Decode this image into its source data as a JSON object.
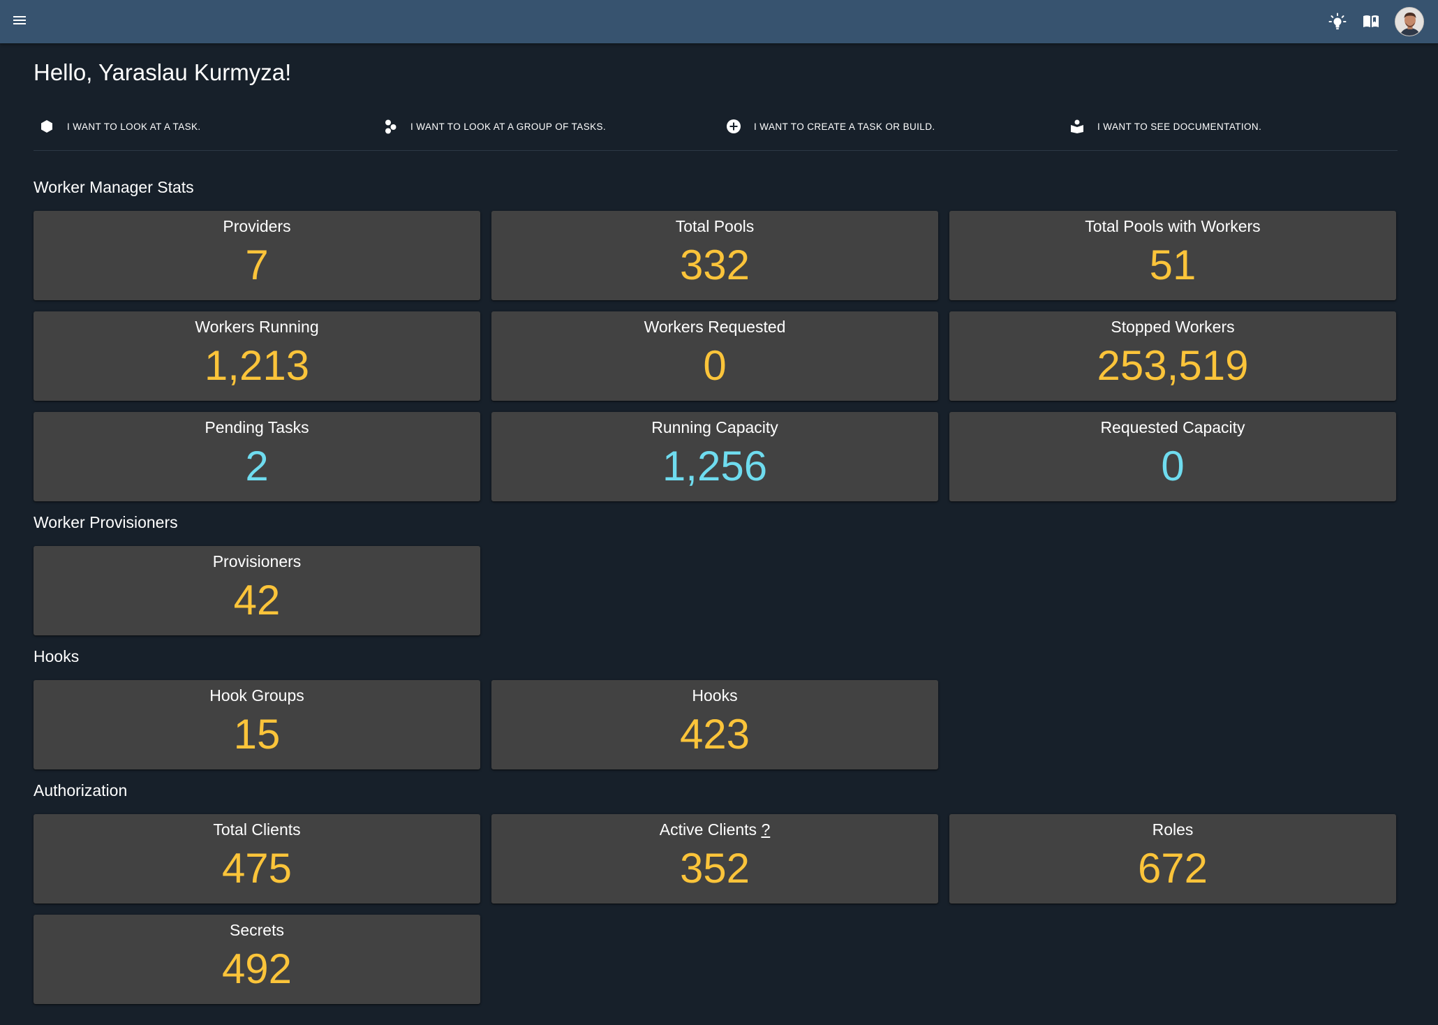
{
  "appbar": {
    "menu_icon": "hamburger-menu-icon",
    "theme_icon": "lightbulb-icon",
    "docs_icon": "open-book-icon",
    "avatar_icon": "user-avatar",
    "color": "#37536f"
  },
  "greeting": "Hello, Yaraslau Kurmyza!",
  "actions": [
    {
      "label": "I WANT TO LOOK AT A TASK.",
      "icon": "hexagon-icon"
    },
    {
      "label": "I WANT TO LOOK AT A GROUP OF TASKS.",
      "icon": "group-circles-icon"
    },
    {
      "label": "I WANT TO CREATE A TASK OR BUILD.",
      "icon": "plus-circle-icon"
    },
    {
      "label": "I WANT TO SEE DOCUMENTATION.",
      "icon": "book-reader-icon"
    }
  ],
  "sections": {
    "worker_manager": {
      "title": "Worker Manager Stats",
      "cards": [
        {
          "label": "Providers",
          "value": "7"
        },
        {
          "label": "Total Pools",
          "value": "332"
        },
        {
          "label": "Total Pools with Workers",
          "value": "51"
        },
        {
          "label": "Workers Running",
          "value": "1,213"
        },
        {
          "label": "Workers Requested",
          "value": "0"
        },
        {
          "label": "Stopped Workers",
          "value": "253,519"
        },
        {
          "label": "Pending Tasks",
          "value": "2"
        },
        {
          "label": "Running Capacity",
          "value": "1,256"
        },
        {
          "label": "Requested Capacity",
          "value": "0"
        }
      ]
    },
    "provisioners": {
      "title": "Worker Provisioners",
      "cards": [
        {
          "label": "Provisioners",
          "value": "42"
        }
      ]
    },
    "hooks": {
      "title": "Hooks",
      "cards": [
        {
          "label": "Hook Groups",
          "value": "15"
        },
        {
          "label": "Hooks",
          "value": "423"
        }
      ]
    },
    "authorization": {
      "title": "Authorization",
      "cards": [
        {
          "label": "Total Clients",
          "value": "475"
        },
        {
          "label": "Active Clients",
          "help": "?",
          "value": "352"
        },
        {
          "label": "Roles",
          "value": "672"
        },
        {
          "label": "Secrets",
          "value": "492"
        }
      ]
    }
  },
  "colors": {
    "background": "#17202a",
    "card": "#424242",
    "value_yellow": "#fbc43a",
    "value_cyan": "#6fdcef"
  }
}
